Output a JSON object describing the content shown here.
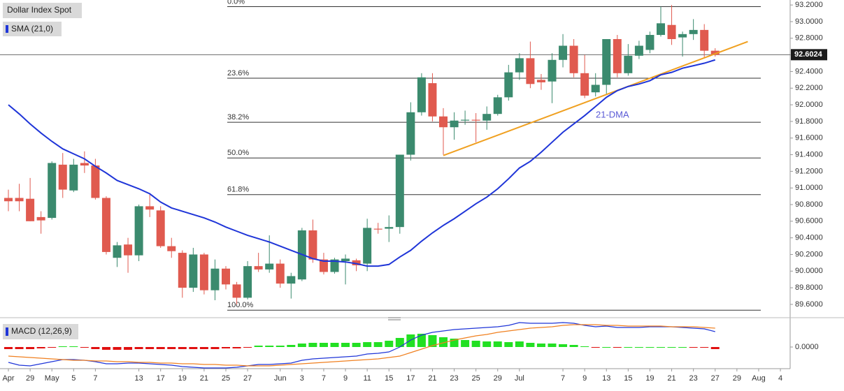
{
  "chart_data": [
    {
      "type": "candlestick",
      "title": "Dollar Index Spot",
      "open": [
        90.88,
        90.88,
        90.87,
        90.65,
        90.64,
        91.28,
        90.97,
        91.3,
        91.27,
        90.88,
        90.16,
        90.32,
        90.19,
        90.78,
        90.73,
        90.3,
        90.22,
        89.8,
        90.2,
        89.77,
        90.03,
        89.84,
        89.68,
        90.06,
        90.02,
        90.09,
        89.85,
        89.9,
        90.49,
        90.14,
        89.99,
        90.12,
        90.13,
        90.09,
        90.51,
        90.51,
        90.53,
        91.4,
        91.91,
        92.26,
        91.86,
        91.73,
        91.81,
        91.82,
        91.81,
        91.89,
        92.09,
        92.39,
        92.56,
        92.3,
        92.28,
        92.54,
        92.71,
        92.38,
        92.15,
        92.24,
        92.79,
        92.38,
        92.59,
        92.66,
        92.84,
        92.96,
        92.81,
        92.85,
        92.9,
        92.65
      ],
      "high": [
        90.98,
        91.05,
        91.12,
        90.72,
        91.32,
        91.42,
        91.35,
        91.44,
        91.35,
        90.9,
        90.35,
        90.4,
        90.8,
        90.92,
        90.78,
        90.4,
        90.25,
        90.28,
        90.22,
        90.14,
        90.06,
        89.87,
        90.12,
        90.22,
        90.43,
        90.14,
        89.98,
        90.52,
        90.62,
        90.22,
        90.16,
        90.2,
        90.15,
        90.63,
        90.58,
        90.67,
        91.4,
        92.03,
        92.38,
        92.38,
        91.96,
        91.91,
        91.93,
        91.9,
        91.98,
        92.12,
        92.48,
        92.62,
        92.76,
        92.37,
        92.62,
        92.85,
        92.79,
        92.6,
        92.38,
        92.79,
        92.84,
        92.73,
        92.77,
        92.88,
        93.18,
        93.2,
        92.88,
        93.03,
        92.97,
        92.68
      ],
      "low": [
        90.72,
        90.72,
        90.6,
        90.45,
        90.62,
        90.88,
        90.95,
        91.18,
        90.86,
        90.2,
        90.05,
        89.98,
        90.12,
        90.65,
        90.28,
        90.16,
        89.68,
        89.75,
        89.72,
        89.65,
        89.78,
        89.6,
        89.66,
        89.99,
        89.98,
        89.8,
        89.67,
        89.88,
        90.1,
        89.96,
        89.97,
        89.84,
        90.0,
        90.0,
        90.45,
        90.35,
        90.45,
        91.33,
        91.87,
        91.8,
        91.4,
        91.58,
        91.76,
        91.55,
        91.7,
        91.87,
        92.05,
        92.3,
        92.2,
        92.18,
        92.02,
        92.45,
        92.33,
        92.08,
        92.1,
        92.13,
        92.33,
        92.35,
        92.55,
        92.62,
        92.82,
        92.72,
        92.58,
        92.78,
        92.57,
        92.58
      ],
      "close": [
        90.84,
        90.84,
        90.6,
        90.61,
        91.3,
        90.98,
        91.28,
        91.27,
        90.88,
        90.23,
        90.31,
        90.19,
        90.78,
        90.74,
        90.3,
        90.24,
        89.8,
        90.2,
        89.77,
        90.03,
        89.84,
        89.68,
        90.06,
        90.02,
        90.09,
        89.85,
        89.94,
        90.49,
        90.14,
        89.99,
        90.14,
        90.15,
        90.07,
        90.52,
        90.5,
        90.53,
        91.4,
        91.91,
        92.33,
        91.86,
        91.73,
        91.81,
        91.82,
        91.81,
        91.89,
        92.09,
        92.39,
        92.56,
        92.25,
        92.27,
        92.54,
        92.71,
        92.38,
        92.11,
        92.24,
        92.79,
        92.38,
        92.59,
        92.71,
        92.84,
        92.98,
        92.79,
        92.85,
        92.9,
        92.65,
        92.6
      ],
      "up_color": "#3b8a6e",
      "down_color": "#e05a4f",
      "sma": {
        "name": "SMA (21,0)",
        "color": "#1f35d8",
        "values": [
          92.0,
          91.89,
          91.77,
          91.66,
          91.56,
          91.47,
          91.41,
          91.35,
          91.26,
          91.18,
          91.09,
          91.04,
          90.99,
          90.93,
          90.83,
          90.76,
          90.72,
          90.68,
          90.64,
          90.59,
          90.53,
          90.48,
          90.43,
          90.39,
          90.35,
          90.3,
          90.25,
          90.2,
          90.15,
          90.12,
          90.12,
          90.11,
          90.09,
          90.06,
          90.06,
          90.08,
          90.17,
          90.25,
          90.36,
          90.46,
          90.55,
          90.63,
          90.72,
          90.81,
          90.89,
          90.99,
          91.11,
          91.24,
          91.32,
          91.43,
          91.55,
          91.67,
          91.77,
          91.87,
          91.98,
          92.09,
          92.17,
          92.22,
          92.25,
          92.29,
          92.36,
          92.39,
          92.44,
          92.47,
          92.5,
          92.54
        ]
      },
      "trendline": {
        "x": [
          40,
          68
        ],
        "values": [
          91.39,
          92.76
        ],
        "color": "#f0a020"
      },
      "fibonacci": [
        {
          "label": "0.0%",
          "value": 93.18
        },
        {
          "label": "23.6%",
          "value": 92.32
        },
        {
          "label": "38.2%",
          "value": 91.79
        },
        {
          "label": "50.0%",
          "value": 91.36
        },
        {
          "label": "61.8%",
          "value": 90.92
        },
        {
          "label": "100.0%",
          "value": 89.53
        }
      ],
      "annotation": "21-DMA",
      "last": 92.6024,
      "ylim": [
        89.44,
        93.26
      ],
      "yticks": [
        {
          "value": 93.2,
          "label": "93.2000"
        },
        {
          "value": 93.0,
          "label": "93.0000"
        },
        {
          "value": 92.8,
          "label": "92.8000"
        },
        {
          "value": 92.6,
          "label": "92.6000"
        },
        {
          "value": 92.4,
          "label": "92.4000"
        },
        {
          "value": 92.2,
          "label": "92.2000"
        },
        {
          "value": 92.0,
          "label": "92.0000"
        },
        {
          "value": 91.8,
          "label": "91.8000"
        },
        {
          "value": 91.6,
          "label": "91.6000"
        },
        {
          "value": 91.4,
          "label": "91.4000"
        },
        {
          "value": 91.2,
          "label": "91.2000"
        },
        {
          "value": 91.0,
          "label": "91.0000"
        },
        {
          "value": 90.8,
          "label": "90.8000"
        },
        {
          "value": 90.6,
          "label": "90.6000"
        },
        {
          "value": 90.4,
          "label": "90.4000"
        },
        {
          "value": 90.2,
          "label": "90.2000"
        },
        {
          "value": 90.0,
          "label": "90.0000"
        },
        {
          "value": 89.8,
          "label": "89.8000"
        },
        {
          "value": 89.6,
          "label": "89.6000"
        }
      ]
    },
    {
      "type": "macd",
      "title": "MACD (12,26,9)",
      "categories": [
        "Apr",
        null,
        "29",
        null,
        "May",
        null,
        "5",
        null,
        "7",
        null,
        null,
        null,
        "13",
        null,
        "17",
        null,
        "19",
        null,
        "21",
        null,
        "25",
        null,
        "27",
        null,
        null,
        "Jun",
        null,
        "3",
        null,
        "7",
        null,
        "9",
        null,
        "11",
        null,
        "15",
        null,
        "17",
        null,
        "21",
        null,
        "23",
        null,
        "25",
        null,
        "29",
        null,
        "Jul",
        null,
        null,
        null,
        "7",
        null,
        "9",
        null,
        "13",
        null,
        "15",
        null,
        "19",
        null,
        "21",
        null,
        "23",
        null,
        "27",
        null,
        "29",
        null,
        "Aug",
        null,
        "4"
      ],
      "series": [
        {
          "color": "#1f35d8",
          "values": [
            -0.44,
            -0.52,
            -0.54,
            -0.48,
            -0.42,
            -0.36,
            -0.36,
            -0.38,
            -0.42,
            -0.48,
            -0.48,
            -0.46,
            -0.46,
            -0.48,
            -0.5,
            -0.52,
            -0.56,
            -0.58,
            -0.6,
            -0.6,
            -0.6,
            -0.58,
            -0.54,
            -0.5,
            -0.5,
            -0.48,
            -0.46,
            -0.38,
            -0.34,
            -0.32,
            -0.3,
            -0.28,
            -0.26,
            -0.2,
            -0.18,
            -0.14,
            0.0,
            0.2,
            0.34,
            0.42,
            0.46,
            0.5,
            0.52,
            0.54,
            0.56,
            0.58,
            0.62,
            0.7,
            0.68,
            0.68,
            0.68,
            0.7,
            0.68,
            0.62,
            0.58,
            0.6,
            0.56,
            0.56,
            0.56,
            0.58,
            0.58,
            0.58,
            0.56,
            0.54,
            0.52,
            0.44,
            null,
            null,
            null,
            null,
            null,
            null
          ]
        },
        {
          "color": "#f08020",
          "values": [
            -0.26,
            -0.28,
            -0.3,
            -0.32,
            -0.34,
            -0.36,
            -0.38,
            -0.38,
            -0.4,
            -0.4,
            -0.42,
            -0.42,
            -0.44,
            -0.44,
            -0.46,
            -0.46,
            -0.48,
            -0.48,
            -0.5,
            -0.5,
            -0.52,
            -0.52,
            -0.54,
            -0.54,
            -0.54,
            -0.52,
            -0.5,
            -0.48,
            -0.46,
            -0.44,
            -0.42,
            -0.4,
            -0.38,
            -0.36,
            -0.34,
            -0.3,
            -0.26,
            -0.16,
            -0.06,
            0.04,
            0.12,
            0.2,
            0.26,
            0.32,
            0.36,
            0.42,
            0.46,
            0.5,
            0.54,
            0.56,
            0.58,
            0.62,
            0.64,
            0.64,
            0.64,
            0.62,
            0.62,
            0.6,
            0.6,
            0.6,
            0.6,
            0.58,
            0.58,
            0.58,
            0.56,
            0.54,
            null,
            null,
            null,
            null,
            null,
            null
          ]
        }
      ],
      "histogram": {
        "pos_color": "#22e022",
        "neg_color": "#e01010",
        "values": [
          -0.06,
          -0.06,
          -0.06,
          -0.04,
          -0.02,
          0.02,
          0.02,
          -0.02,
          -0.06,
          -0.08,
          -0.08,
          -0.08,
          -0.06,
          -0.06,
          -0.06,
          -0.06,
          -0.06,
          -0.06,
          -0.06,
          -0.06,
          -0.04,
          -0.04,
          -0.02,
          0.04,
          0.04,
          0.04,
          0.06,
          0.1,
          0.12,
          0.12,
          0.12,
          0.12,
          0.12,
          0.14,
          0.14,
          0.18,
          0.26,
          0.36,
          0.38,
          0.34,
          0.28,
          0.24,
          0.2,
          0.18,
          0.16,
          0.16,
          0.14,
          0.16,
          0.12,
          0.1,
          0.1,
          0.08,
          0.06,
          0.02,
          -0.02,
          0.0,
          -0.02,
          0.0,
          0.0,
          0.0,
          0.0,
          0.0,
          0.0,
          -0.02,
          -0.02,
          -0.06,
          null,
          null,
          null,
          null,
          null,
          null
        ]
      },
      "ylim": [
        -0.62,
        0.74
      ],
      "yticks": [
        {
          "value": 0,
          "label": "0.0000"
        }
      ]
    }
  ]
}
